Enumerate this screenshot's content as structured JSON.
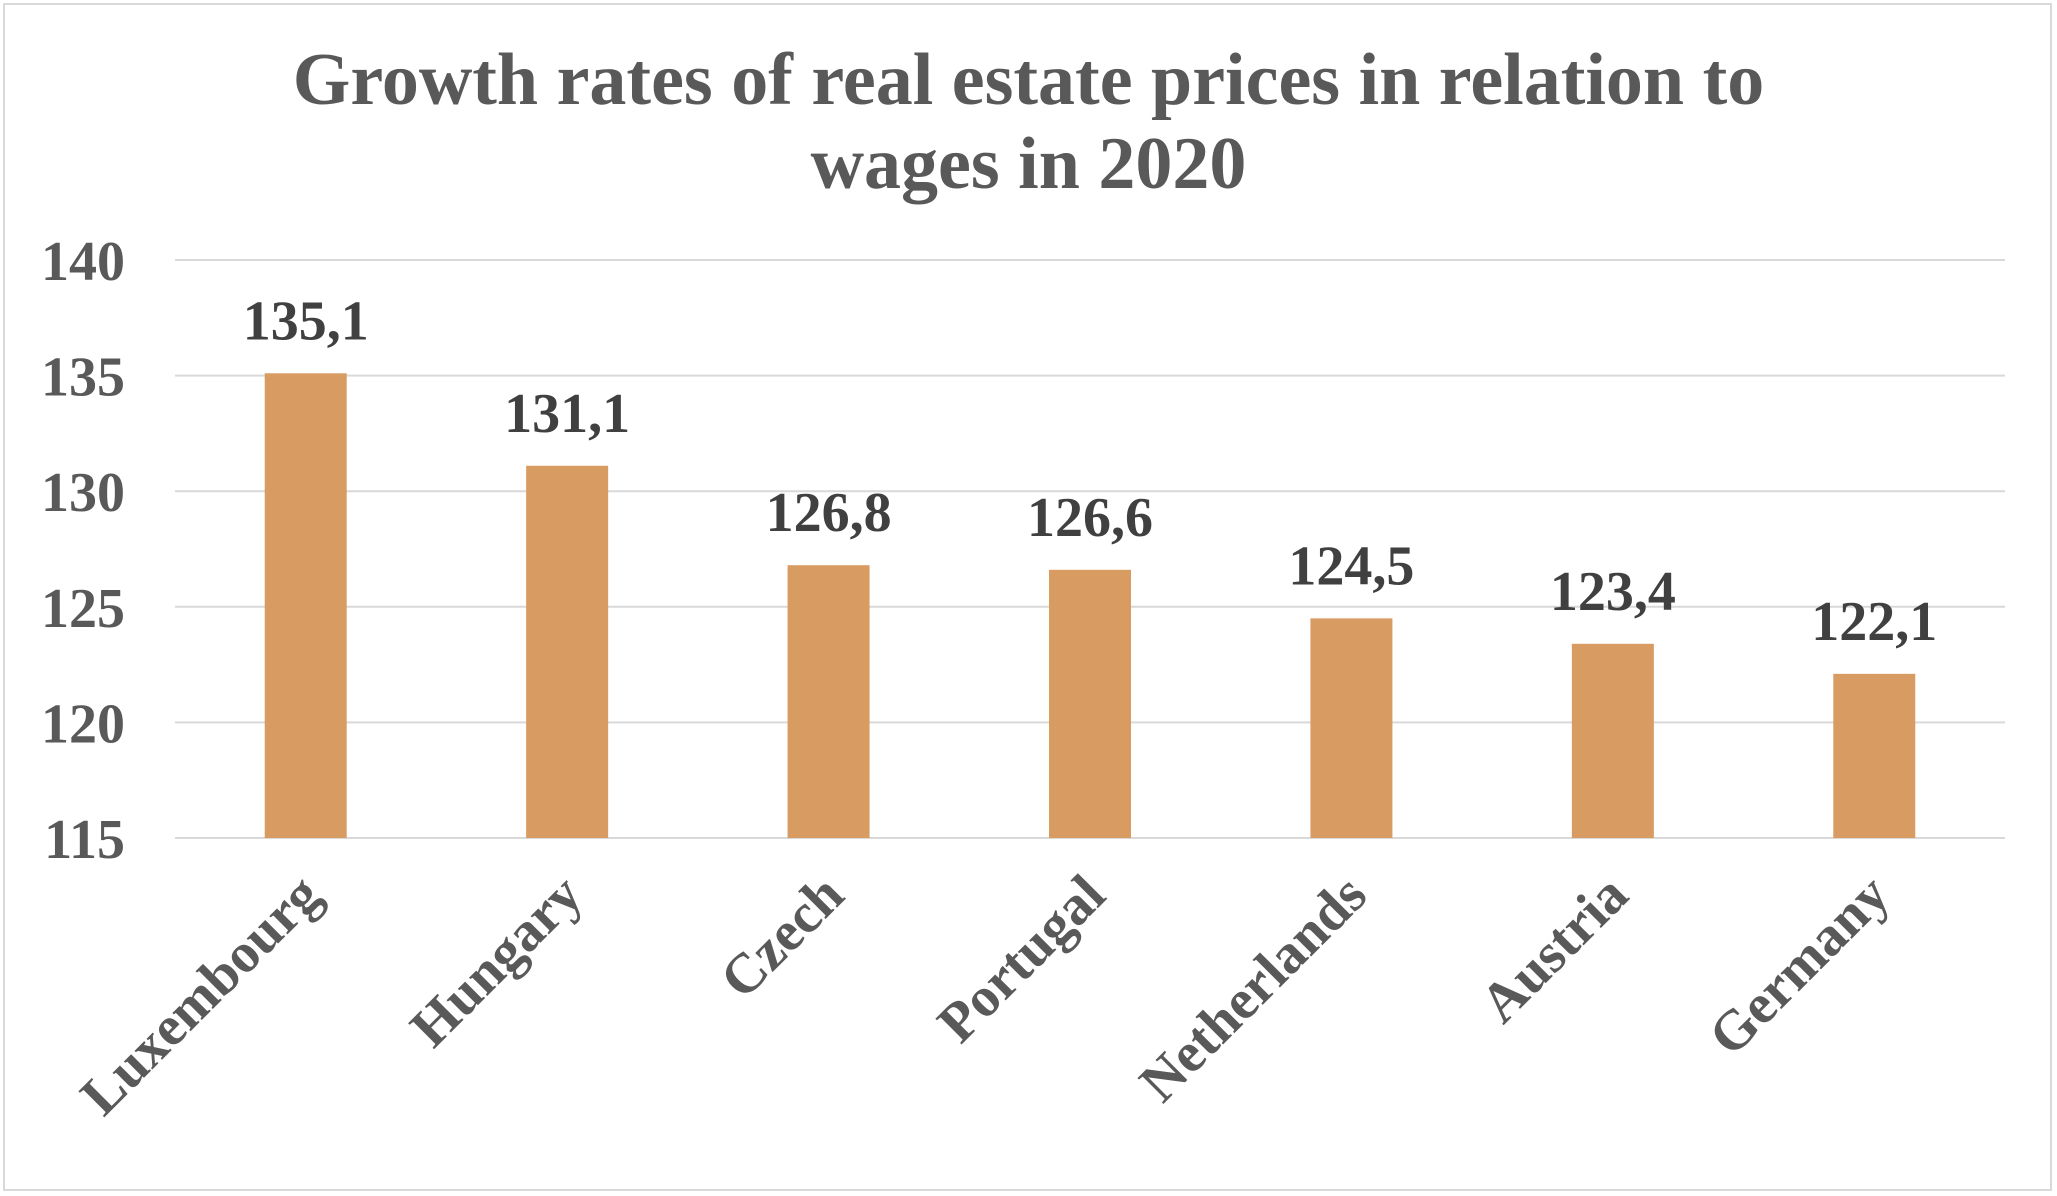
{
  "chart_data": {
    "type": "bar",
    "title_lines": [
      "Growth rates of real estate prices in relation to",
      "wages in 2020"
    ],
    "categories": [
      "Luxembourg",
      "Hungary",
      "Czech",
      "Portugal",
      "Netherlands",
      "Austria",
      "Germany"
    ],
    "values": [
      135.1,
      131.1,
      126.8,
      126.6,
      124.5,
      123.4,
      122.1
    ],
    "data_labels": [
      "135,1",
      "131,1",
      "126,8",
      "126,6",
      "124,5",
      "123,4",
      "122,1"
    ],
    "xlabel": "",
    "ylabel": "",
    "ylim": [
      115,
      140
    ],
    "yticks": [
      115,
      120,
      125,
      130,
      135,
      140
    ],
    "grid": true,
    "legend": "none",
    "bar_color": "#d89b62",
    "grid_color": "#d9d9d9",
    "text_color": "#595959"
  }
}
